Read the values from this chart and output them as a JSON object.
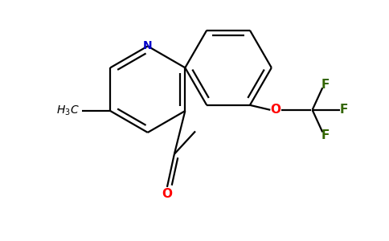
{
  "background_color": "#ffffff",
  "bond_color": "#000000",
  "nitrogen_color": "#0000cc",
  "oxygen_color": "#ff0000",
  "fluorine_color": "#336600",
  "line_width": 1.6,
  "figsize": [
    4.84,
    3.0
  ],
  "dpi": 100,
  "xlim": [
    -2.2,
    3.2
  ],
  "ylim": [
    -2.0,
    2.0
  ]
}
